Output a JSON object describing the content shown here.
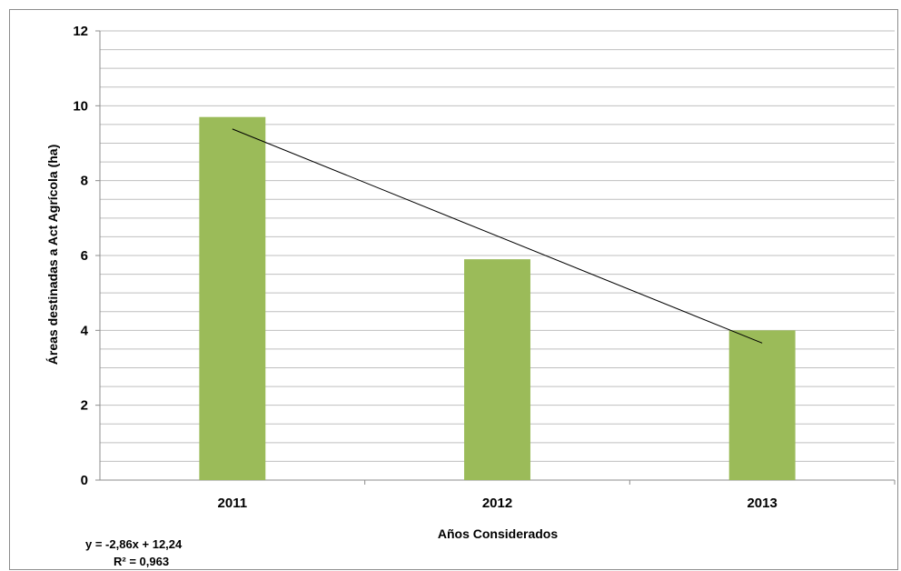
{
  "chart_data": {
    "type": "bar",
    "categories": [
      "2011",
      "2012",
      "2013"
    ],
    "values": [
      9.7,
      5.9,
      4.0
    ],
    "xlabel": "Años Considerados",
    "ylabel": "Áreas destinadas a Act Agrícola (ha)",
    "ylim": [
      0,
      12
    ],
    "yticks": [
      "0",
      "2",
      "4",
      "6",
      "8",
      "10",
      "12"
    ],
    "grid": true,
    "bar_color": "#9bbb59",
    "trendline": {
      "type": "linear",
      "slope": -2.86,
      "intercept": 12.24,
      "color": "#000000",
      "equation": "y = -2,86x + 12,24",
      "r2": "R² = 0,963"
    }
  }
}
